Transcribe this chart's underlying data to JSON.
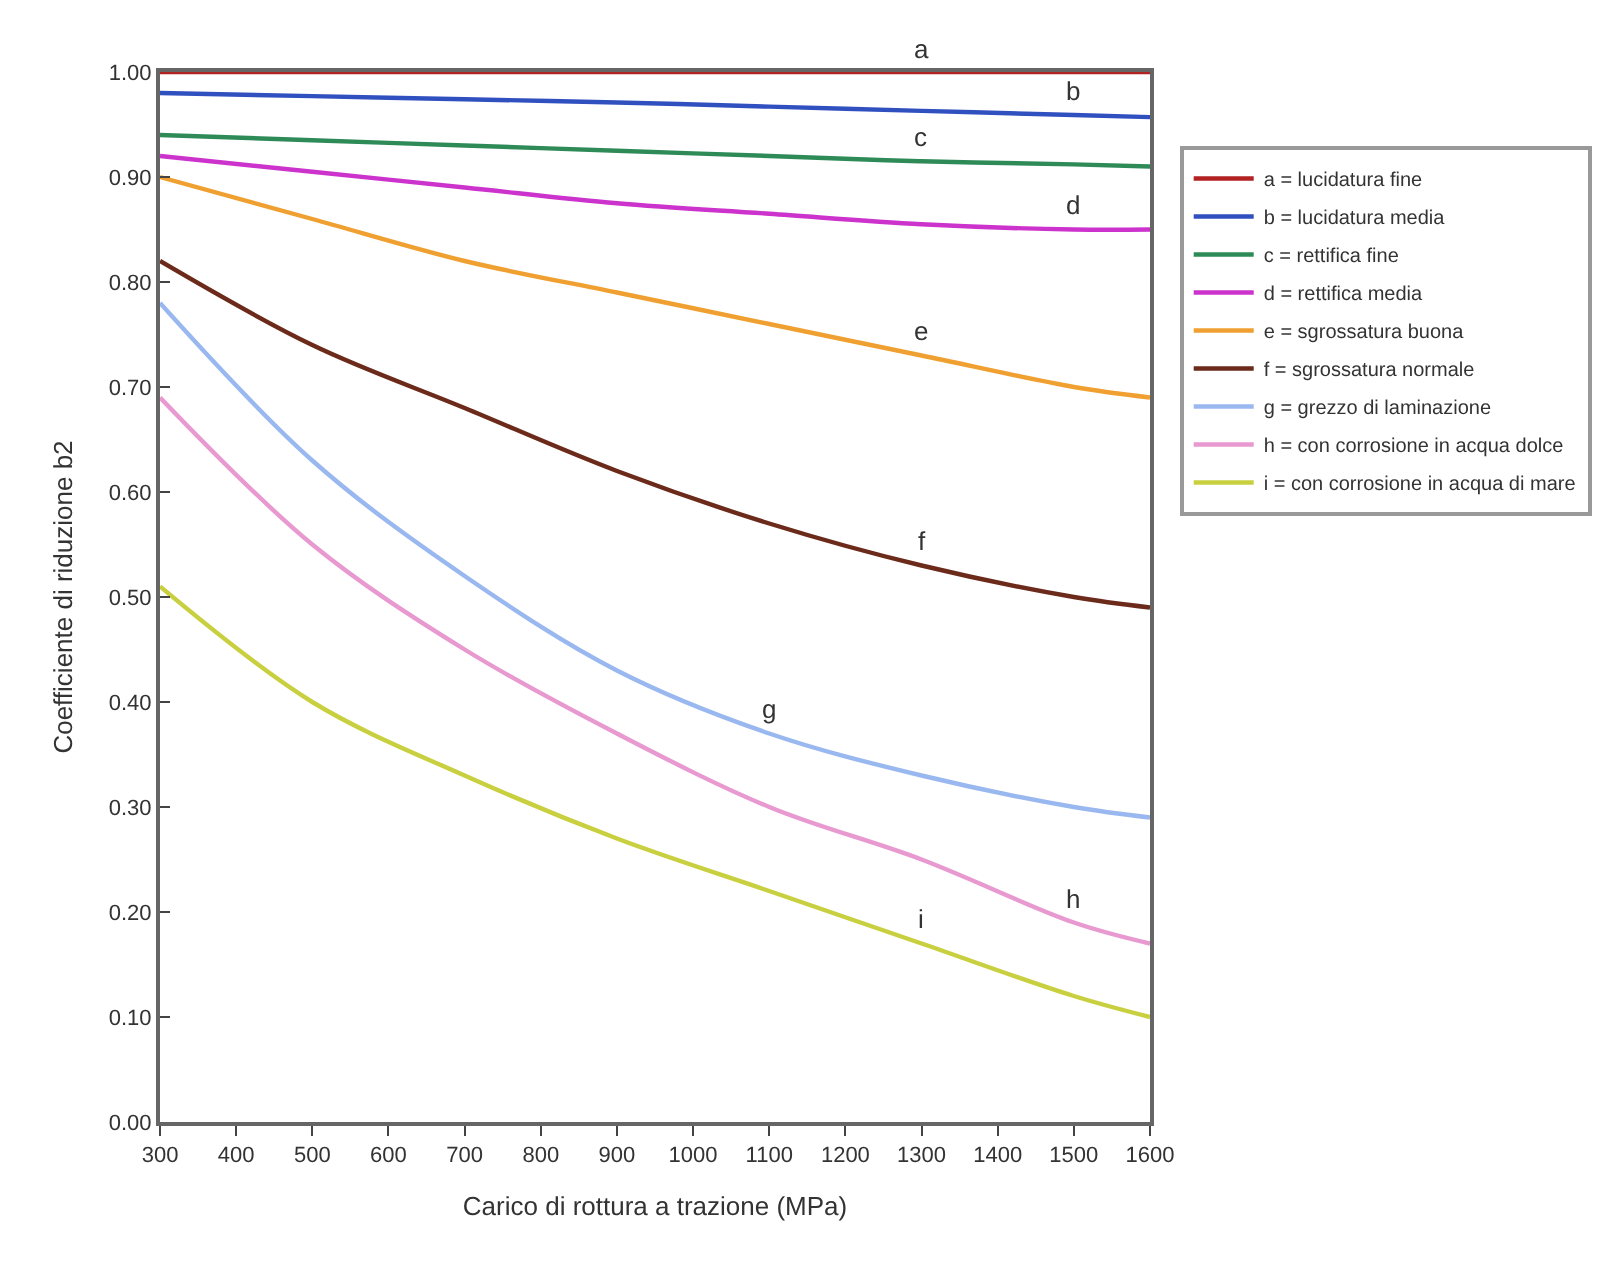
{
  "chart_data": {
    "type": "line",
    "xlabel": "Carico di rottura a trazione (MPa)",
    "ylabel": "Coefficiente di riduzione b2",
    "x": [
      300,
      500,
      700,
      900,
      1100,
      1300,
      1500,
      1600
    ],
    "series": [
      {
        "name": "a = lucidatura fine",
        "color": "#b22222",
        "values": [
          1.0,
          1.0,
          1.0,
          1.0,
          1.0,
          1.0,
          1.0,
          1.0
        ]
      },
      {
        "name": "b = lucidatura media",
        "color": "#3050c0",
        "values": [
          0.98,
          0.977,
          0.974,
          0.971,
          0.967,
          0.963,
          0.959,
          0.957
        ]
      },
      {
        "name": "c = rettifica fine",
        "color": "#2e8b57",
        "values": [
          0.94,
          0.935,
          0.93,
          0.925,
          0.92,
          0.915,
          0.912,
          0.91
        ]
      },
      {
        "name": "d = rettifica media",
        "color": "#cc33cc",
        "values": [
          0.92,
          0.905,
          0.89,
          0.875,
          0.865,
          0.855,
          0.85,
          0.85
        ]
      },
      {
        "name": "e = sgrossatura buona",
        "color": "#f0a030",
        "values": [
          0.9,
          0.86,
          0.82,
          0.79,
          0.76,
          0.73,
          0.7,
          0.69
        ]
      },
      {
        "name": "f = sgrossatura normale",
        "color": "#6b2a1a",
        "values": [
          0.82,
          0.74,
          0.68,
          0.62,
          0.57,
          0.53,
          0.5,
          0.49
        ]
      },
      {
        "name": "g = grezzo di laminazione",
        "color": "#9ab8f0",
        "values": [
          0.78,
          0.63,
          0.52,
          0.43,
          0.37,
          0.33,
          0.3,
          0.29
        ]
      },
      {
        "name": "h = con corrosione in acqua dolce",
        "color": "#e899d0",
        "values": [
          0.69,
          0.55,
          0.45,
          0.37,
          0.3,
          0.25,
          0.19,
          0.17
        ]
      },
      {
        "name": "i = con corrosione in acqua di mare",
        "color": "#c8d040",
        "values": [
          0.51,
          0.4,
          0.33,
          0.27,
          0.22,
          0.17,
          0.12,
          0.1
        ]
      }
    ],
    "annotations": [
      {
        "text": "a",
        "x": 1300,
        "y": 1.0
      },
      {
        "text": "b",
        "x": 1500,
        "y": 0.959
      },
      {
        "text": "c",
        "x": 1300,
        "y": 0.915
      },
      {
        "text": "d",
        "x": 1500,
        "y": 0.85
      },
      {
        "text": "e",
        "x": 1300,
        "y": 0.73
      },
      {
        "text": "f",
        "x": 1300,
        "y": 0.53
      },
      {
        "text": "g",
        "x": 1100,
        "y": 0.37
      },
      {
        "text": "h",
        "x": 1500,
        "y": 0.19
      },
      {
        "text": "i",
        "x": 1300,
        "y": 0.17
      }
    ],
    "xlim": [
      300,
      1600
    ],
    "xticks": [
      300,
      400,
      500,
      600,
      700,
      800,
      900,
      1000,
      1100,
      1200,
      1300,
      1400,
      1500,
      1600
    ],
    "ylim": [
      0,
      1
    ],
    "yticks": [
      {
        "value": 0,
        "label": "0.00"
      },
      {
        "value": 0.1,
        "label": "0.10"
      },
      {
        "value": 0.2,
        "label": "0.20"
      },
      {
        "value": 0.3,
        "label": "0.30"
      },
      {
        "value": 0.4,
        "label": "0.40"
      },
      {
        "value": 0.5,
        "label": "0.50"
      },
      {
        "value": 0.6,
        "label": "0.60"
      },
      {
        "value": 0.7,
        "label": "0.70"
      },
      {
        "value": 0.8,
        "label": "0.80"
      },
      {
        "value": 0.9,
        "label": "0.90"
      },
      {
        "value": 1,
        "label": "1.00"
      }
    ],
    "legend": "right",
    "marker": "none",
    "line_style": "solid"
  }
}
